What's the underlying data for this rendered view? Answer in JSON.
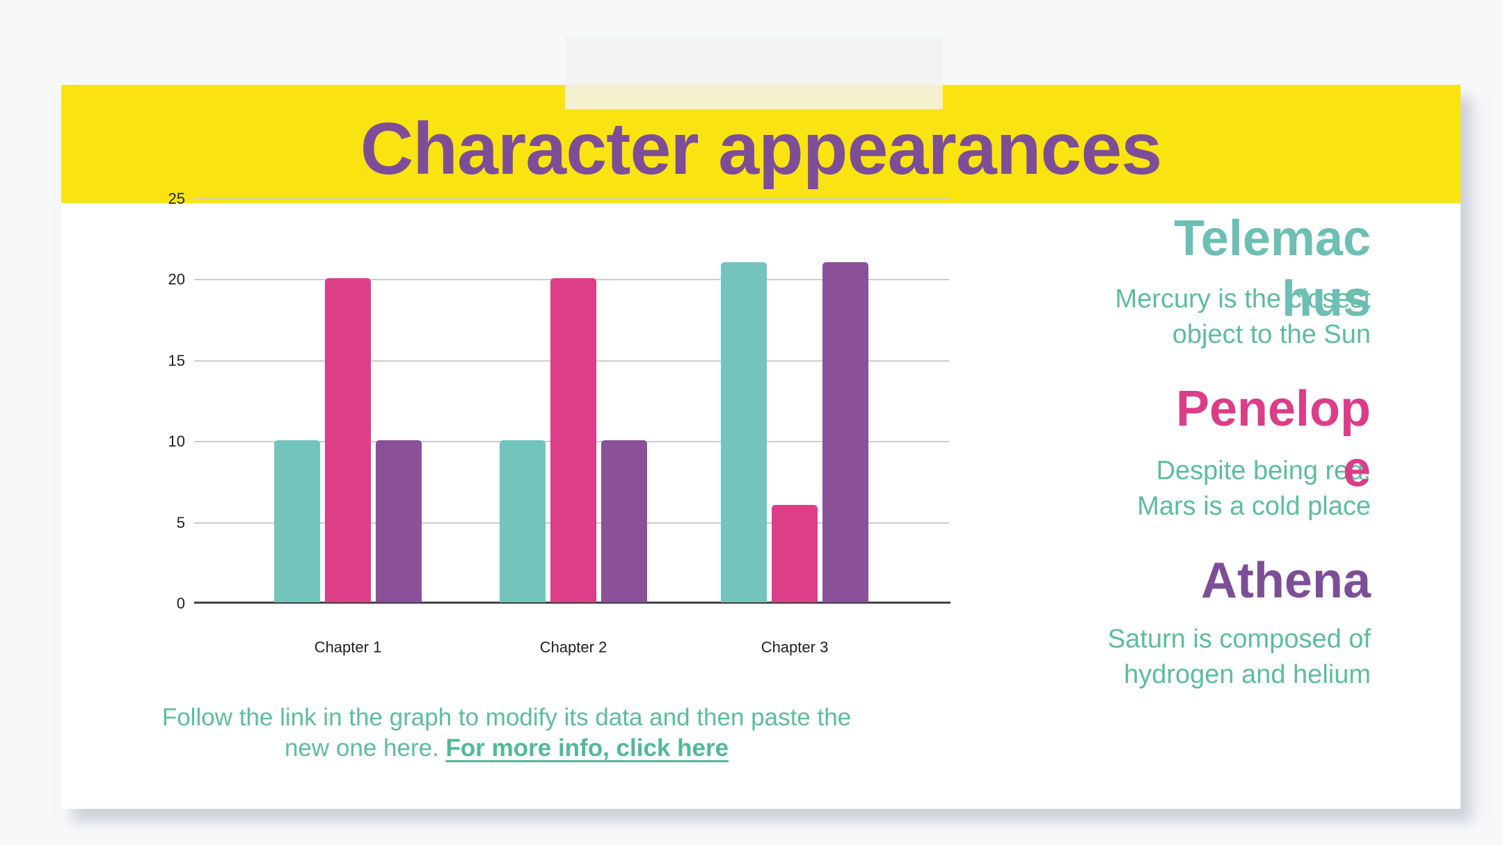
{
  "slide": {
    "title": "Character appearances",
    "footnote": {
      "line1": "Follow the link in the graph to modify its data and then paste the",
      "line2_prefix": "new one here. ",
      "link_label": "For more info, click here"
    },
    "characters": [
      {
        "name": "Telemachus",
        "display_name": "Telemac\nhus",
        "color": "#6CBFB2",
        "description": "Mercury is the closest\nobject to the Sun"
      },
      {
        "name": "Penelope",
        "display_name": "Penelop\ne",
        "color": "#DC3D88",
        "description": "Despite being red,\nMars is a cold place"
      },
      {
        "name": "Athena",
        "display_name": "Athena",
        "color": "#7C4E98",
        "description": "Saturn is composed of\nhydrogen and helium"
      }
    ],
    "colors": {
      "header_background": "#F9E412",
      "title_text": "#7D4E97",
      "body_text_green": "#5CBD9D",
      "page_background": "#F7F8FA"
    }
  },
  "chart_data": {
    "type": "bar",
    "title": "Character appearances",
    "categories": [
      "Chapter 1",
      "Chapter 2",
      "Chapter 3"
    ],
    "series": [
      {
        "name": "Telemachus",
        "color": "#73C5BC",
        "values": [
          10,
          10,
          21
        ]
      },
      {
        "name": "Penelope",
        "color": "#DC3E88",
        "values": [
          20,
          20,
          6
        ]
      },
      {
        "name": "Athena",
        "color": "#8A5199",
        "values": [
          10,
          10,
          21
        ]
      }
    ],
    "xlabel": "",
    "ylabel": "",
    "ylim": [
      0,
      25
    ],
    "yticks": [
      0,
      5,
      10,
      15,
      20,
      25
    ],
    "grid": true,
    "legend": "none"
  }
}
